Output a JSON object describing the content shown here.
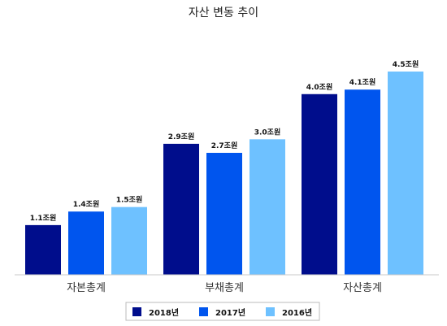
{
  "chart_data": {
    "type": "bar",
    "title": "자산 변동 추이",
    "categories": [
      "자본총계",
      "부채총계",
      "자산총계"
    ],
    "unit": "조원",
    "series": [
      {
        "name": "2018년",
        "color": "#000d8c",
        "values": [
          1.1,
          2.9,
          4.0
        ],
        "labels": [
          "1.1조원",
          "2.9조원",
          "4.0조원"
        ]
      },
      {
        "name": "2017년",
        "color": "#0055ee",
        "values": [
          1.4,
          2.7,
          4.1
        ],
        "labels": [
          "1.4조원",
          "2.7조원",
          "4.1조원"
        ]
      },
      {
        "name": "2016년",
        "color": "#6ec1ff",
        "values": [
          1.5,
          3.0,
          4.5
        ],
        "labels": [
          "1.5조원",
          "3.0조원",
          "4.5조원"
        ]
      }
    ],
    "ylim": [
      0,
      5.0
    ],
    "grid": false,
    "legend_position": "bottom"
  }
}
